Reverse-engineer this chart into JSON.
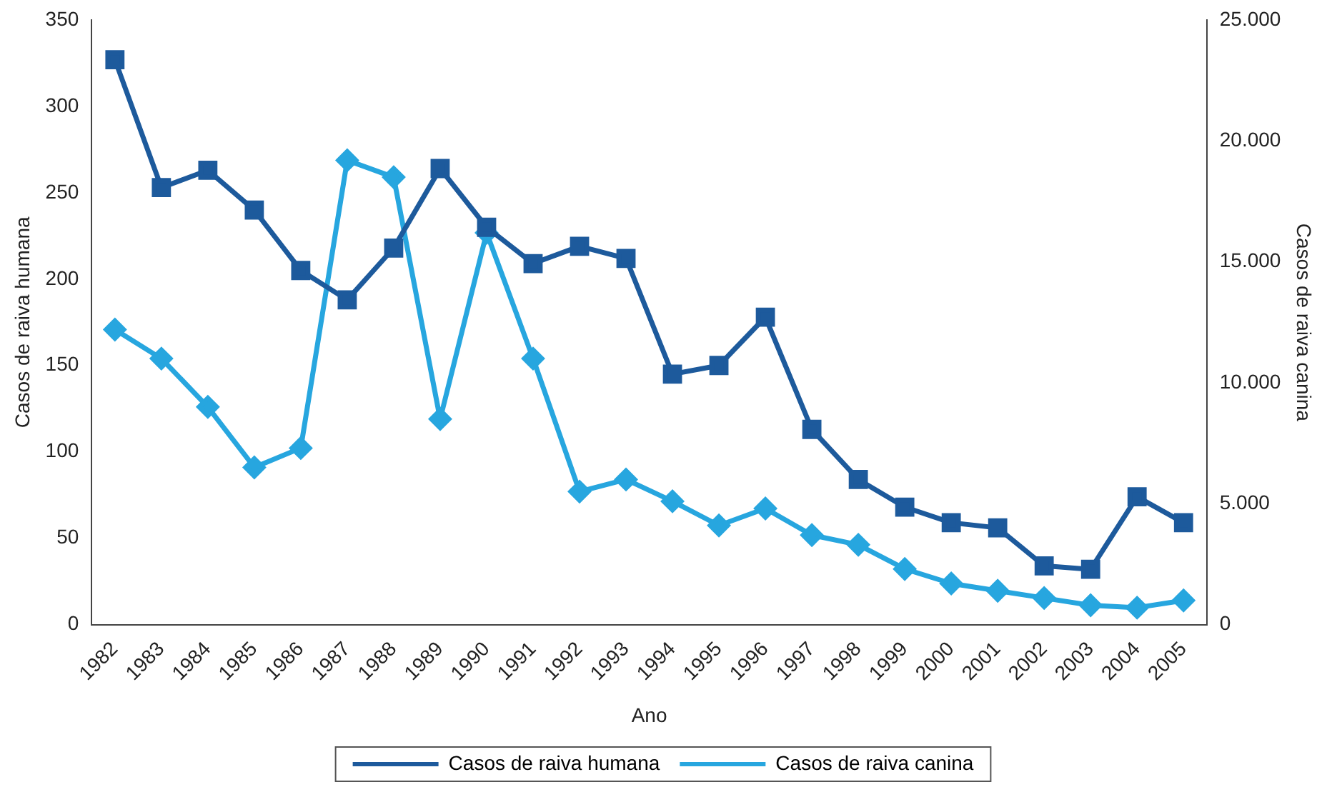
{
  "chart_data": {
    "type": "line",
    "xlabel": "Ano",
    "ylabel": "Casos de raiva humana",
    "y2label": "Casos de raiva canina",
    "categories": [
      "1982",
      "1983",
      "1984",
      "1985",
      "1986",
      "1987",
      "1988",
      "1989",
      "1990",
      "1991",
      "1992",
      "1993",
      "1994",
      "1995",
      "1996",
      "1997",
      "1998",
      "1999",
      "2000",
      "2001",
      "2002",
      "2003",
      "2004",
      "2005"
    ],
    "series": [
      {
        "name": "Casos de raiva humana",
        "color": "#1d5a9c",
        "marker": "square",
        "values": [
          327,
          253,
          263,
          240,
          205,
          188,
          218,
          264,
          230,
          209,
          219,
          212,
          145,
          150,
          178,
          113,
          84,
          68,
          59,
          56,
          34,
          32,
          74,
          59
        ]
      },
      {
        "name": "Casos de raiva canina",
        "color": "#27a6df",
        "marker": "diamond",
        "axis": "y2",
        "values": [
          12200,
          11000,
          9000,
          6500,
          7300,
          19200,
          18500,
          8500,
          16200,
          11000,
          5500,
          6000,
          5100,
          4100,
          4800,
          3700,
          3300,
          2300,
          1700,
          1400,
          1100,
          800,
          700,
          1000
        ]
      }
    ],
    "ylim": [
      0,
      350
    ],
    "yticks": [
      0,
      50,
      100,
      150,
      200,
      250,
      300,
      350
    ],
    "y2lim": [
      0,
      25000
    ],
    "y2ticks": [
      {
        "value": 0,
        "label": "0"
      },
      {
        "value": 5000,
        "label": "5.000"
      },
      {
        "value": 10000,
        "label": "10.000"
      },
      {
        "value": 15000,
        "label": "15.000"
      },
      {
        "value": 20000,
        "label": "20.000"
      },
      {
        "value": 25000,
        "label": "25.000"
      }
    ],
    "grid": false,
    "legend": "bottom",
    "line_style": "solid"
  }
}
